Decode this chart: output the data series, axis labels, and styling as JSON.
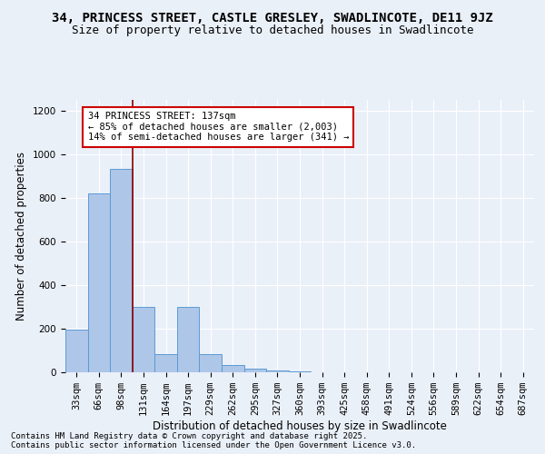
{
  "title1": "34, PRINCESS STREET, CASTLE GRESLEY, SWADLINCOTE, DE11 9JZ",
  "title2": "Size of property relative to detached houses in Swadlincote",
  "xlabel": "Distribution of detached houses by size in Swadlincote",
  "ylabel": "Number of detached properties",
  "bin_labels": [
    "33sqm",
    "66sqm",
    "98sqm",
    "131sqm",
    "164sqm",
    "197sqm",
    "229sqm",
    "262sqm",
    "295sqm",
    "327sqm",
    "360sqm",
    "393sqm",
    "425sqm",
    "458sqm",
    "491sqm",
    "524sqm",
    "556sqm",
    "589sqm",
    "622sqm",
    "654sqm",
    "687sqm"
  ],
  "bar_values": [
    195,
    820,
    935,
    300,
    82,
    300,
    82,
    35,
    18,
    10,
    5,
    0,
    0,
    0,
    0,
    0,
    0,
    0,
    0,
    0,
    0
  ],
  "bar_color": "#aec6e8",
  "bar_edge_color": "#5b9bd5",
  "vline_x": 2.5,
  "vline_color": "#8b0000",
  "annotation_text": "34 PRINCESS STREET: 137sqm\n← 85% of detached houses are smaller (2,003)\n14% of semi-detached houses are larger (341) →",
  "annotation_box_color": "white",
  "annotation_box_edge": "#cc0000",
  "ylim": [
    0,
    1250
  ],
  "yticks": [
    0,
    200,
    400,
    600,
    800,
    1000,
    1200
  ],
  "background_color": "#eaf0f8",
  "footer1": "Contains HM Land Registry data © Crown copyright and database right 2025.",
  "footer2": "Contains public sector information licensed under the Open Government Licence v3.0.",
  "title1_fontsize": 10,
  "title2_fontsize": 9,
  "axis_label_fontsize": 8.5,
  "tick_fontsize": 7.5,
  "footer_fontsize": 6.5
}
